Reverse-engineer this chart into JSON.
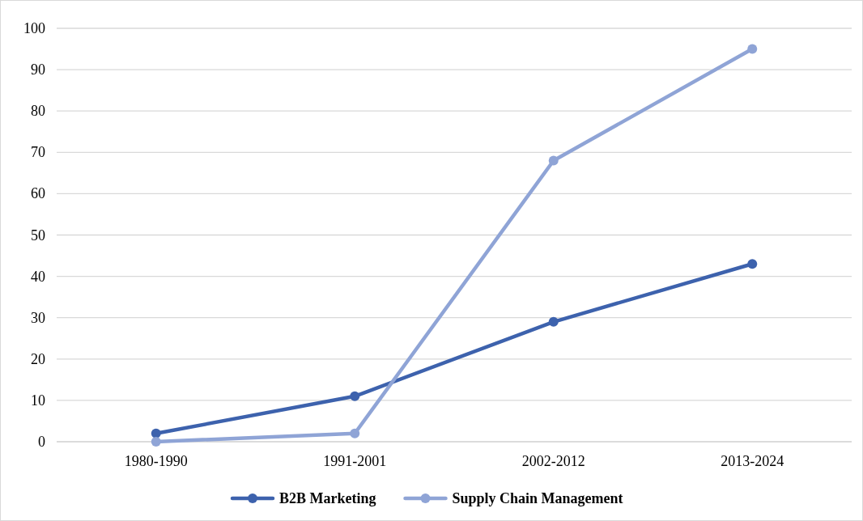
{
  "chart_data": {
    "type": "line",
    "categories": [
      "1980-1990",
      "1991-2001",
      "2002-2012",
      "2013-2024"
    ],
    "series": [
      {
        "name": "B2B Marketing",
        "color": "#3d62ad",
        "values": [
          2,
          11,
          29,
          43
        ]
      },
      {
        "name": "Supply Chain Management",
        "color": "#8fa4d6",
        "values": [
          0,
          2,
          68,
          95
        ]
      }
    ],
    "ylim": [
      0,
      100
    ],
    "yticks": [
      0,
      10,
      20,
      30,
      40,
      50,
      60,
      70,
      80,
      90,
      100
    ],
    "grid": "y",
    "legend": "bottom",
    "marker": "circle",
    "line_style": "solid"
  }
}
